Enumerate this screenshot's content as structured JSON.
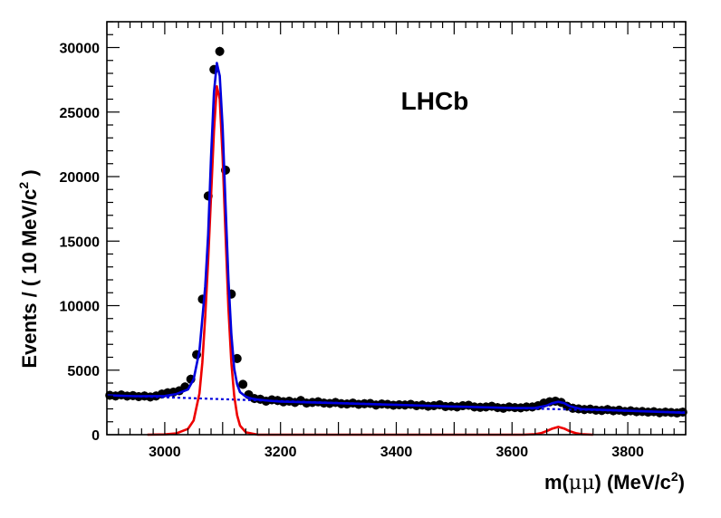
{
  "chart_data": {
    "type": "scatter",
    "title": "",
    "annotation": "LHCb",
    "xlabel": {
      "prefix": "m(",
      "greek": "μμ",
      "mid": ") (MeV/c",
      "sup": "2",
      "suffix": ")"
    },
    "ylabel": {
      "prefix": "Events / ( 10 MeV/c",
      "sup": "2",
      "suffix": " )"
    },
    "xlim": [
      2900,
      3900
    ],
    "ylim": [
      0,
      32000
    ],
    "x_ticks": [
      3000,
      3200,
      3400,
      3600,
      3800
    ],
    "y_ticks": [
      0,
      5000,
      10000,
      15000,
      20000,
      25000,
      30000
    ],
    "x_tick_labels": [
      "3000",
      "3200",
      "3400",
      "3600",
      "3800"
    ],
    "y_tick_labels": [
      "0",
      "5000",
      "10000",
      "15000",
      "20000",
      "25000",
      "30000"
    ],
    "series": [
      {
        "name": "data",
        "kind": "points",
        "color": "#000000",
        "x": [
          2905,
          2915,
          2925,
          2935,
          2945,
          2955,
          2965,
          2975,
          2985,
          2995,
          3005,
          3015,
          3025,
          3035,
          3045,
          3055,
          3065,
          3075,
          3085,
          3095,
          3105,
          3115,
          3125,
          3135,
          3145,
          3155,
          3165,
          3175,
          3185,
          3195,
          3205,
          3215,
          3225,
          3235,
          3245,
          3255,
          3265,
          3275,
          3285,
          3295,
          3305,
          3315,
          3325,
          3335,
          3345,
          3355,
          3365,
          3375,
          3385,
          3395,
          3405,
          3415,
          3425,
          3435,
          3445,
          3455,
          3465,
          3475,
          3485,
          3495,
          3505,
          3515,
          3525,
          3535,
          3545,
          3555,
          3565,
          3575,
          3585,
          3595,
          3605,
          3615,
          3625,
          3635,
          3645,
          3655,
          3665,
          3675,
          3685,
          3695,
          3705,
          3715,
          3725,
          3735,
          3745,
          3755,
          3765,
          3775,
          3785,
          3795,
          3805,
          3815,
          3825,
          3835,
          3845,
          3855,
          3865,
          3875,
          3885,
          3895
        ],
        "y": [
          3050,
          3000,
          3080,
          2990,
          3030,
          2950,
          3000,
          2920,
          3000,
          3150,
          3250,
          3300,
          3400,
          3700,
          4300,
          6200,
          10500,
          18500,
          28300,
          29700,
          20500,
          10900,
          5900,
          3900,
          3100,
          2800,
          2750,
          2600,
          2700,
          2650,
          2550,
          2600,
          2500,
          2650,
          2450,
          2500,
          2550,
          2450,
          2420,
          2500,
          2400,
          2380,
          2450,
          2350,
          2400,
          2420,
          2300,
          2380,
          2350,
          2280,
          2320,
          2300,
          2350,
          2250,
          2300,
          2200,
          2250,
          2320,
          2180,
          2200,
          2150,
          2250,
          2280,
          2150,
          2120,
          2150,
          2200,
          2100,
          2050,
          2150,
          2100,
          2080,
          2150,
          2150,
          2250,
          2450,
          2550,
          2600,
          2500,
          2200,
          2050,
          2000,
          1950,
          1980,
          1900,
          1880,
          1950,
          1850,
          1900,
          1800,
          1850,
          1780,
          1800,
          1750,
          1780,
          1700,
          1750,
          1720,
          1680,
          1750
        ]
      },
      {
        "name": "total fit",
        "kind": "line",
        "color": "#0000dd",
        "x": [
          2900,
          2950,
          3000,
          3020,
          3040,
          3050,
          3060,
          3070,
          3075,
          3080,
          3085,
          3090,
          3095,
          3100,
          3105,
          3110,
          3115,
          3120,
          3125,
          3130,
          3140,
          3150,
          3160,
          3180,
          3200,
          3300,
          3400,
          3500,
          3600,
          3640,
          3660,
          3670,
          3680,
          3690,
          3700,
          3720,
          3800,
          3900
        ],
        "y": [
          3050,
          2980,
          3000,
          3150,
          3500,
          4300,
          6500,
          11500,
          15500,
          21500,
          26500,
          28800,
          27800,
          23800,
          17800,
          12000,
          7800,
          5100,
          3900,
          3300,
          2950,
          2800,
          2720,
          2630,
          2570,
          2440,
          2310,
          2180,
          2060,
          2080,
          2250,
          2450,
          2550,
          2450,
          2200,
          1980,
          1850,
          1700
        ]
      },
      {
        "name": "signal",
        "kind": "line",
        "color": "#ee0000",
        "x": [
          2970,
          3000,
          3020,
          3040,
          3050,
          3060,
          3065,
          3070,
          3075,
          3080,
          3085,
          3090,
          3095,
          3100,
          3105,
          3110,
          3115,
          3120,
          3125,
          3130,
          3140,
          3160,
          3200,
          3580,
          3620,
          3640,
          3650,
          3660,
          3670,
          3680,
          3690,
          3700,
          3710,
          3720,
          3740
        ],
        "y": [
          0,
          20,
          100,
          450,
          1100,
          3200,
          5600,
          9200,
          13500,
          18500,
          23500,
          27000,
          26000,
          21500,
          15500,
          9800,
          5600,
          3000,
          1500,
          700,
          180,
          10,
          0,
          0,
          0,
          40,
          120,
          280,
          480,
          600,
          480,
          260,
          120,
          40,
          0
        ]
      },
      {
        "name": "background",
        "kind": "line",
        "dashed": true,
        "color": "#0000dd",
        "x": [
          2900,
          3000,
          3100,
          3200,
          3300,
          3400,
          3500,
          3600,
          3700,
          3800,
          3900
        ],
        "y": [
          3050,
          2900,
          2750,
          2600,
          2460,
          2320,
          2190,
          2070,
          1950,
          1840,
          1730
        ]
      }
    ]
  }
}
